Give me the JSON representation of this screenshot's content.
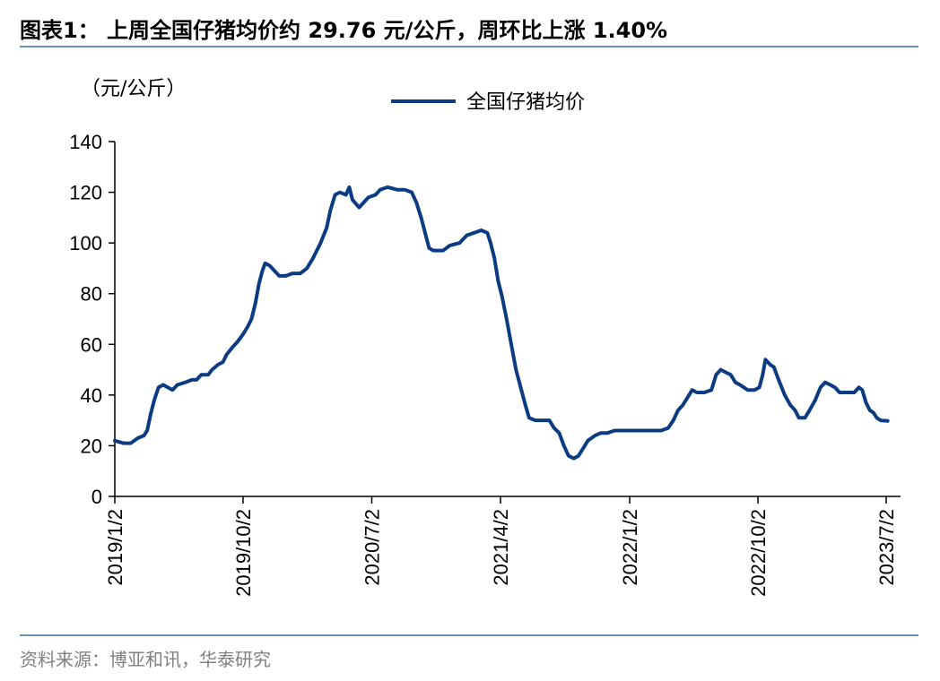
{
  "header": {
    "title": "图表1：  上周全国仔猪均价约 29.76 元/公斤，周环比上涨 1.40%"
  },
  "footer": {
    "source": "资料来源：博亚和讯，华泰研究"
  },
  "colors": {
    "series": "#0b3b82",
    "rule": "#6b8fb5",
    "axis": "#000000",
    "source_text": "#7f7f7f"
  },
  "chart_data": {
    "type": "line",
    "unit_label": "（元/公斤）",
    "legend": {
      "position": "top-center",
      "entries": [
        "全国仔猪均价"
      ]
    },
    "grid": false,
    "ylim": [
      0,
      140
    ],
    "y_ticks": [
      0,
      20,
      40,
      60,
      80,
      100,
      120,
      140
    ],
    "x_ticks": [
      "2019/1/2",
      "2019/10/2",
      "2020/7/2",
      "2021/4/2",
      "2022/1/2",
      "2022/10/2",
      "2023/7/2"
    ],
    "series": [
      {
        "name": "全国仔猪均价",
        "points": [
          [
            "2019-01-02",
            22
          ],
          [
            "2019-01-20",
            21
          ],
          [
            "2019-02-05",
            21
          ],
          [
            "2019-02-20",
            23
          ],
          [
            "2019-03-05",
            24
          ],
          [
            "2019-03-12",
            26
          ],
          [
            "2019-03-20",
            33
          ],
          [
            "2019-03-27",
            38
          ],
          [
            "2019-04-05",
            43
          ],
          [
            "2019-04-15",
            44
          ],
          [
            "2019-04-25",
            43
          ],
          [
            "2019-05-05",
            42
          ],
          [
            "2019-05-15",
            44
          ],
          [
            "2019-06-01",
            45
          ],
          [
            "2019-06-15",
            46
          ],
          [
            "2019-06-25",
            46
          ],
          [
            "2019-07-05",
            48
          ],
          [
            "2019-07-20",
            48
          ],
          [
            "2019-07-28",
            50
          ],
          [
            "2019-08-10",
            52
          ],
          [
            "2019-08-20",
            53
          ],
          [
            "2019-08-28",
            56
          ],
          [
            "2019-09-10",
            59
          ],
          [
            "2019-09-20",
            61
          ],
          [
            "2019-10-02",
            64
          ],
          [
            "2019-10-12",
            67
          ],
          [
            "2019-10-20",
            70
          ],
          [
            "2019-10-28",
            76
          ],
          [
            "2019-11-05",
            84
          ],
          [
            "2019-11-12",
            89
          ],
          [
            "2019-11-18",
            92
          ],
          [
            "2019-11-28",
            91
          ],
          [
            "2019-12-08",
            89
          ],
          [
            "2019-12-18",
            87
          ],
          [
            "2020-01-01",
            87
          ],
          [
            "2020-01-15",
            88
          ],
          [
            "2020-02-01",
            88
          ],
          [
            "2020-02-15",
            90
          ],
          [
            "2020-02-28",
            94
          ],
          [
            "2020-03-15",
            100
          ],
          [
            "2020-03-28",
            106
          ],
          [
            "2020-04-05",
            113
          ],
          [
            "2020-04-15",
            119
          ],
          [
            "2020-04-25",
            120
          ],
          [
            "2020-05-08",
            119
          ],
          [
            "2020-05-15",
            122
          ],
          [
            "2020-05-22",
            117
          ],
          [
            "2020-06-05",
            114
          ],
          [
            "2020-06-15",
            116
          ],
          [
            "2020-06-25",
            118
          ],
          [
            "2020-07-10",
            119
          ],
          [
            "2020-07-20",
            121
          ],
          [
            "2020-08-05",
            122
          ],
          [
            "2020-08-25",
            121
          ],
          [
            "2020-09-10",
            121
          ],
          [
            "2020-09-25",
            120
          ],
          [
            "2020-10-05",
            116
          ],
          [
            "2020-10-15",
            110
          ],
          [
            "2020-10-25",
            103
          ],
          [
            "2020-11-01",
            98
          ],
          [
            "2020-11-10",
            97
          ],
          [
            "2020-12-01",
            97
          ],
          [
            "2020-12-15",
            99
          ],
          [
            "2021-01-05",
            100
          ],
          [
            "2021-01-20",
            103
          ],
          [
            "2021-02-05",
            104
          ],
          [
            "2021-02-20",
            105
          ],
          [
            "2021-03-05",
            104
          ],
          [
            "2021-03-12",
            100
          ],
          [
            "2021-03-20",
            94
          ],
          [
            "2021-03-28",
            85
          ],
          [
            "2021-04-05",
            79
          ],
          [
            "2021-04-15",
            70
          ],
          [
            "2021-04-25",
            60
          ],
          [
            "2021-05-05",
            50
          ],
          [
            "2021-05-15",
            43
          ],
          [
            "2021-05-25",
            36
          ],
          [
            "2021-06-02",
            31
          ],
          [
            "2021-06-15",
            30
          ],
          [
            "2021-07-01",
            30
          ],
          [
            "2021-07-15",
            30
          ],
          [
            "2021-07-25",
            27
          ],
          [
            "2021-08-05",
            25
          ],
          [
            "2021-08-15",
            20
          ],
          [
            "2021-08-25",
            16
          ],
          [
            "2021-09-05",
            15
          ],
          [
            "2021-09-15",
            16
          ],
          [
            "2021-09-25",
            19
          ],
          [
            "2021-10-05",
            22
          ],
          [
            "2021-10-20",
            24
          ],
          [
            "2021-11-01",
            25
          ],
          [
            "2021-11-15",
            25
          ],
          [
            "2021-12-01",
            26
          ],
          [
            "2021-12-20",
            26
          ],
          [
            "2022-01-10",
            26
          ],
          [
            "2022-02-01",
            26
          ],
          [
            "2022-02-20",
            26
          ],
          [
            "2022-03-10",
            26
          ],
          [
            "2022-03-25",
            27
          ],
          [
            "2022-04-05",
            30
          ],
          [
            "2022-04-15",
            34
          ],
          [
            "2022-04-25",
            36
          ],
          [
            "2022-05-05",
            39
          ],
          [
            "2022-05-15",
            42
          ],
          [
            "2022-05-25",
            41
          ],
          [
            "2022-06-10",
            41
          ],
          [
            "2022-06-25",
            42
          ],
          [
            "2022-07-05",
            48
          ],
          [
            "2022-07-15",
            50
          ],
          [
            "2022-07-25",
            49
          ],
          [
            "2022-08-05",
            48
          ],
          [
            "2022-08-15",
            45
          ],
          [
            "2022-08-25",
            44
          ],
          [
            "2022-09-10",
            42
          ],
          [
            "2022-09-25",
            42
          ],
          [
            "2022-10-05",
            43
          ],
          [
            "2022-10-12",
            48
          ],
          [
            "2022-10-18",
            54
          ],
          [
            "2022-10-28",
            52
          ],
          [
            "2022-11-05",
            51
          ],
          [
            "2022-11-15",
            46
          ],
          [
            "2022-11-28",
            40
          ],
          [
            "2022-12-10",
            36
          ],
          [
            "2022-12-20",
            34
          ],
          [
            "2022-12-28",
            31
          ],
          [
            "2023-01-10",
            31
          ],
          [
            "2023-01-20",
            34
          ],
          [
            "2023-02-01",
            38
          ],
          [
            "2023-02-12",
            43
          ],
          [
            "2023-02-22",
            45
          ],
          [
            "2023-03-05",
            44
          ],
          [
            "2023-03-15",
            43
          ],
          [
            "2023-03-25",
            41
          ],
          [
            "2023-04-10",
            41
          ],
          [
            "2023-04-25",
            41
          ],
          [
            "2023-05-05",
            43
          ],
          [
            "2023-05-12",
            42
          ],
          [
            "2023-05-20",
            37
          ],
          [
            "2023-05-28",
            34
          ],
          [
            "2023-06-05",
            33
          ],
          [
            "2023-06-12",
            31
          ],
          [
            "2023-06-20",
            30
          ],
          [
            "2023-07-05",
            29.76
          ]
        ]
      }
    ]
  }
}
